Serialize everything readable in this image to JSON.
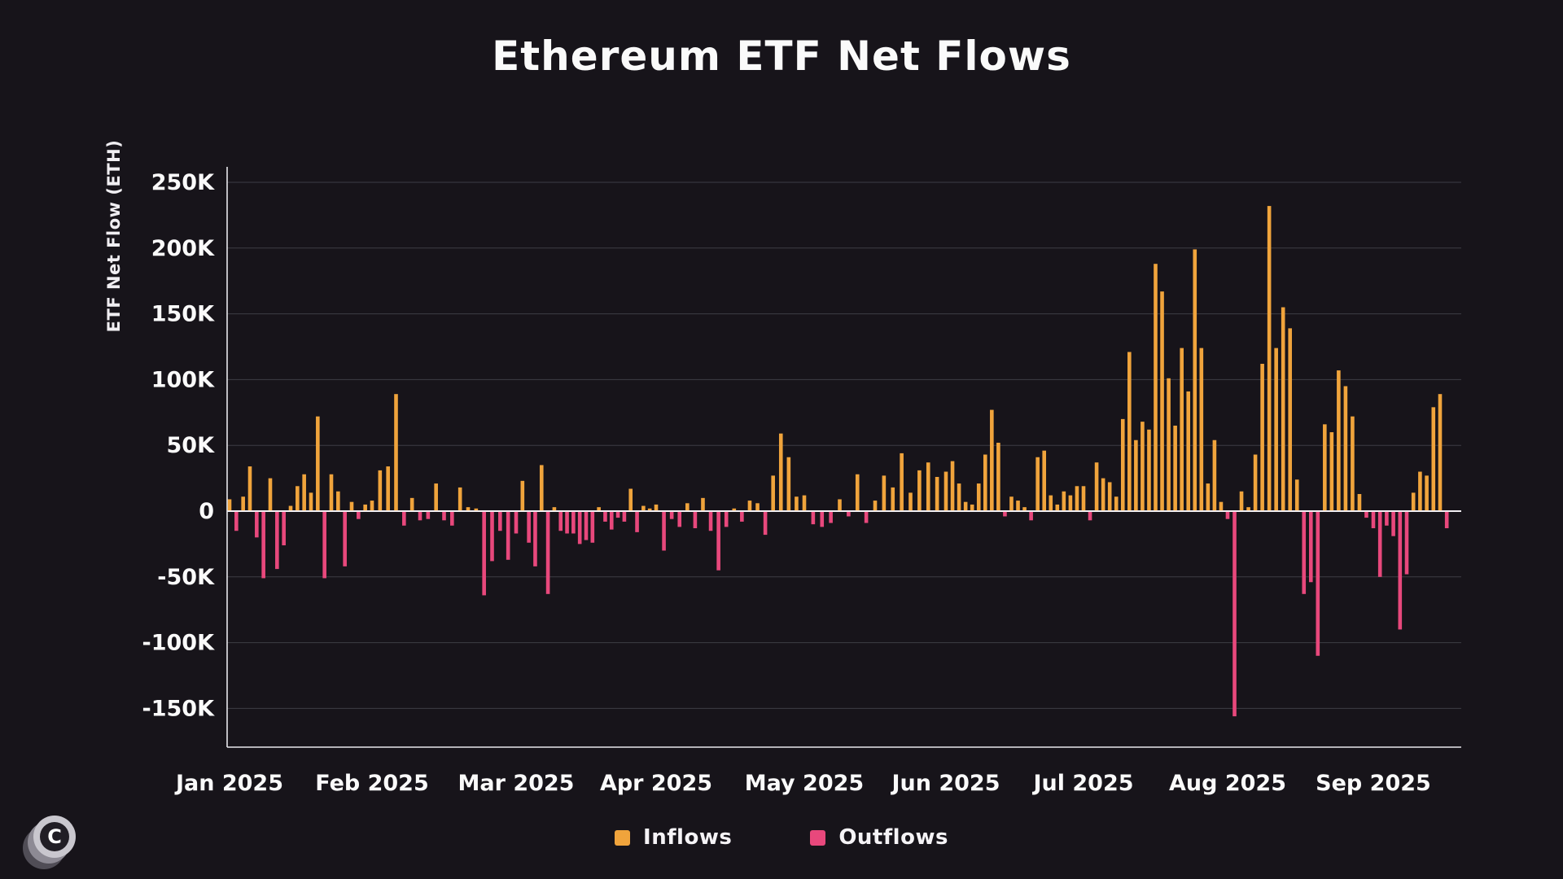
{
  "page": {
    "title": "Ethereum ETF Net Flows"
  },
  "logo": {
    "text": "C"
  },
  "chart_data": {
    "type": "bar",
    "title": "Ethereum ETF Net Flows",
    "ylabel": "ETF Net Flow (ETH)",
    "unit_note": "bar values in thousands of ETH (K)",
    "ylim_k": [
      -180,
      250
    ],
    "grid": true,
    "y_ticks": [
      {
        "value_k": 250,
        "label": "250K"
      },
      {
        "value_k": 200,
        "label": "200K"
      },
      {
        "value_k": 150,
        "label": "150K"
      },
      {
        "value_k": 100,
        "label": "100K"
      },
      {
        "value_k": 50,
        "label": "50K"
      },
      {
        "value_k": 0,
        "label": "0"
      },
      {
        "value_k": -50,
        "label": "-50K"
      },
      {
        "value_k": -100,
        "label": "-100K"
      },
      {
        "value_k": -150,
        "label": "-150K"
      }
    ],
    "colors": {
      "inflow": "#f0a43c",
      "outflow": "#e8487c",
      "background": "#17141a",
      "gridline": "#3e3d45",
      "zero_line": "#f2f0f4",
      "axis_line": "#e8e8ec",
      "text": "#fafafa"
    },
    "legend": [
      {
        "label": "Inflows",
        "color": "#f0a43c"
      },
      {
        "label": "Outflows",
        "color": "#e8487c"
      }
    ],
    "legend_position": "bottom-center",
    "months": [
      {
        "label": "Jan 2025",
        "values_k": [
          9,
          -15,
          11,
          34,
          -20,
          -51,
          25,
          -44,
          -26,
          4,
          19,
          28,
          14,
          72,
          -51,
          28,
          15,
          -42,
          7,
          -6,
          5
        ]
      },
      {
        "label": "Feb 2025",
        "values_k": [
          8,
          31,
          34,
          89,
          -11,
          10,
          -7,
          -6,
          21,
          -7,
          -11,
          18,
          3,
          2,
          -64,
          -38,
          -15,
          -37
        ]
      },
      {
        "label": "Mar 2025",
        "values_k": [
          -17,
          23,
          -24,
          -42,
          35,
          -63,
          3,
          -15,
          -17,
          -17,
          -25,
          -22,
          -24,
          3,
          -8,
          -14,
          -5,
          -8,
          17,
          -16,
          4,
          2
        ]
      },
      {
        "label": "Apr 2025",
        "values_k": [
          5,
          -30,
          -6,
          -12,
          6,
          -13,
          10,
          -15,
          -45,
          -12,
          2,
          -8,
          8,
          6,
          -18,
          27,
          59,
          41,
          11
        ]
      },
      {
        "label": "May 2025",
        "values_k": [
          12,
          -10,
          -12,
          -9,
          9,
          -4,
          28,
          -9,
          8,
          27,
          18,
          44,
          14,
          31,
          37,
          26
        ]
      },
      {
        "label": "Jun 2025",
        "values_k": [
          30,
          38,
          21,
          7,
          5,
          21,
          43,
          77,
          52,
          -4,
          11,
          8,
          3,
          -7,
          41,
          46,
          12,
          5,
          15,
          12,
          19
        ]
      },
      {
        "label": "Jul 2025",
        "values_k": [
          19,
          -7,
          37,
          25,
          22,
          11,
          70,
          121,
          54,
          68,
          62,
          188,
          167,
          101,
          65,
          124,
          91,
          199,
          124,
          21,
          54,
          7
        ]
      },
      {
        "label": "Aug 2025",
        "values_k": [
          -6,
          -156,
          15,
          3,
          43,
          112,
          232,
          124,
          155,
          139,
          24,
          -63,
          -54,
          -110,
          66,
          60,
          107,
          95,
          72,
          13,
          -5
        ]
      },
      {
        "label": "Sep 2025",
        "values_k": [
          -13,
          -50,
          -11,
          -19,
          -90,
          -48,
          14,
          30,
          27,
          79,
          89,
          -13
        ]
      }
    ]
  }
}
